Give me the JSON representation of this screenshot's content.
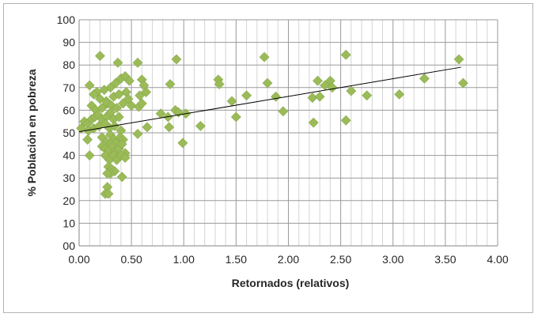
{
  "chart_data": {
    "type": "scatter",
    "title": "",
    "xlabel": "Retornados (relativos)",
    "ylabel": "% Población en pobreza",
    "xlim": [
      0,
      4
    ],
    "ylim": [
      0,
      100
    ],
    "x_ticks": [
      0,
      0.5,
      1,
      1.5,
      2,
      2.5,
      3,
      3.5,
      4
    ],
    "x_tick_labels": [
      "0.00",
      "0.50",
      "1.00",
      "1.50",
      "2.00",
      "2.50",
      "3.00",
      "3.50",
      "4.00"
    ],
    "y_ticks": [
      0,
      10,
      20,
      30,
      40,
      50,
      60,
      70,
      80,
      90,
      100
    ],
    "y_tick_labels": [
      "00",
      "10",
      "20",
      "30",
      "40",
      "50",
      "60",
      "70",
      "80",
      "90",
      "100"
    ],
    "grid": true,
    "legend": "none",
    "marker": "diamond",
    "marker_color": "#9bbb59",
    "trendline": {
      "type": "linear",
      "x": [
        0,
        3.65
      ],
      "y": [
        50.5,
        79
      ],
      "color": "#000000"
    },
    "points": [
      [
        0.2,
        84
      ],
      [
        0.37,
        81
      ],
      [
        0.56,
        81
      ],
      [
        0.93,
        82.5
      ],
      [
        1.77,
        83.5
      ],
      [
        2.55,
        84.5
      ],
      [
        3.63,
        82.5
      ],
      [
        0.1,
        71
      ],
      [
        0.17,
        68
      ],
      [
        0.24,
        69
      ],
      [
        0.3,
        70
      ],
      [
        0.35,
        72
      ],
      [
        0.4,
        74
      ],
      [
        0.44,
        75
      ],
      [
        0.48,
        73
      ],
      [
        0.6,
        73.5
      ],
      [
        0.62,
        71
      ],
      [
        0.87,
        71.5
      ],
      [
        1.33,
        73.5
      ],
      [
        1.34,
        71.5
      ],
      [
        1.8,
        72
      ],
      [
        2.28,
        73
      ],
      [
        2.35,
        71
      ],
      [
        2.4,
        73
      ],
      [
        2.42,
        70
      ],
      [
        3.3,
        74
      ],
      [
        3.67,
        72
      ],
      [
        0.14,
        67
      ],
      [
        0.2,
        65
      ],
      [
        0.26,
        64
      ],
      [
        0.33,
        66
      ],
      [
        0.38,
        67
      ],
      [
        0.45,
        68
      ],
      [
        0.47,
        65
      ],
      [
        0.58,
        66.5
      ],
      [
        0.64,
        68
      ],
      [
        1.6,
        66.5
      ],
      [
        1.88,
        66
      ],
      [
        2.23,
        65.5
      ],
      [
        2.3,
        66
      ],
      [
        2.6,
        68.5
      ],
      [
        2.75,
        66.5
      ],
      [
        3.06,
        67
      ],
      [
        0.12,
        62
      ],
      [
        0.16,
        60
      ],
      [
        0.22,
        61
      ],
      [
        0.27,
        63
      ],
      [
        0.31,
        62
      ],
      [
        0.36,
        61
      ],
      [
        0.42,
        63
      ],
      [
        0.5,
        62
      ],
      [
        0.57,
        61.5
      ],
      [
        0.6,
        63
      ],
      [
        1.46,
        64
      ],
      [
        0.78,
        58.5
      ],
      [
        0.85,
        57
      ],
      [
        0.92,
        60
      ],
      [
        0.95,
        59
      ],
      [
        1.02,
        58.5
      ],
      [
        1.5,
        57
      ],
      [
        1.95,
        59.5
      ],
      [
        2.55,
        55.5
      ],
      [
        2.24,
        54.5
      ],
      [
        0.05,
        55
      ],
      [
        0.08,
        54
      ],
      [
        0.12,
        56
      ],
      [
        0.15,
        57
      ],
      [
        0.18,
        58
      ],
      [
        0.22,
        56
      ],
      [
        0.26,
        57
      ],
      [
        0.3,
        59
      ],
      [
        0.33,
        56
      ],
      [
        0.38,
        57
      ],
      [
        0.02,
        52
      ],
      [
        0.09,
        51
      ],
      [
        0.14,
        52
      ],
      [
        0.19,
        53
      ],
      [
        0.25,
        54
      ],
      [
        0.29,
        52
      ],
      [
        0.34,
        53
      ],
      [
        0.4,
        51
      ],
      [
        0.56,
        49.5
      ],
      [
        0.65,
        52.5
      ],
      [
        0.86,
        52.5
      ],
      [
        1.16,
        53
      ],
      [
        0.08,
        47
      ],
      [
        0.22,
        48
      ],
      [
        0.26,
        46
      ],
      [
        0.3,
        49
      ],
      [
        0.33,
        47
      ],
      [
        0.36,
        46
      ],
      [
        0.39,
        48
      ],
      [
        0.42,
        47
      ],
      [
        0.99,
        45.5
      ],
      [
        0.22,
        44
      ],
      [
        0.25,
        43
      ],
      [
        0.28,
        42
      ],
      [
        0.3,
        45
      ],
      [
        0.32,
        44
      ],
      [
        0.35,
        42
      ],
      [
        0.38,
        43
      ],
      [
        0.41,
        45
      ],
      [
        0.44,
        41
      ],
      [
        0.1,
        40
      ],
      [
        0.25,
        40
      ],
      [
        0.29,
        38
      ],
      [
        0.33,
        40
      ],
      [
        0.36,
        38
      ],
      [
        0.4,
        40
      ],
      [
        0.44,
        39
      ],
      [
        0.28,
        35
      ],
      [
        0.31,
        34
      ],
      [
        0.34,
        33
      ],
      [
        0.3,
        32
      ],
      [
        0.27,
        32
      ],
      [
        0.41,
        30.5
      ],
      [
        0.27,
        26
      ],
      [
        0.25,
        23
      ],
      [
        0.28,
        23
      ]
    ]
  }
}
